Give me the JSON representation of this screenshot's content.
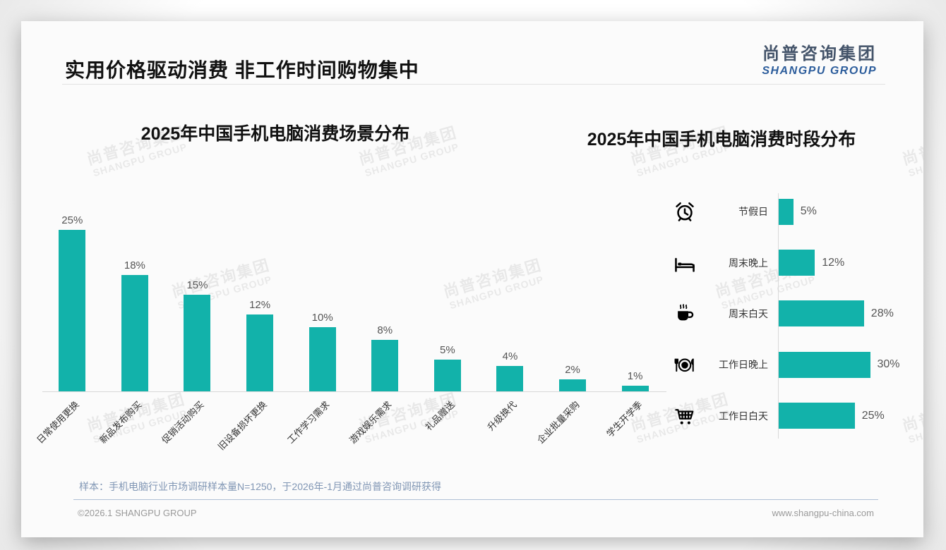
{
  "page": {
    "title": "实用价格驱动消费 非工作时间购物集中",
    "logo": {
      "cn": "尚普咨询集团",
      "en": "SHANGPU GROUP"
    },
    "watermark": {
      "cn": "尚普咨询集团",
      "en": "SHANGPU GROUP"
    },
    "sample_note": "样本：手机电脑行业市场调研样本量N=1250，于2026年-1月通过尚普咨询调研获得",
    "footer_left": "©2026.1 SHANGPU GROUP",
    "footer_right": "www.shangpu-china.com"
  },
  "colors": {
    "accent": "#12B2AA",
    "logo_cn": "#44546A",
    "logo_en": "#2B5C9B",
    "note": "#8096B4",
    "axis": "#D9D9D9"
  },
  "chart_data": [
    {
      "type": "bar",
      "orientation": "vertical",
      "title": "2025年中国手机电脑消费场景分布",
      "categories": [
        "日常使用更换",
        "新品发布购买",
        "促销活动购买",
        "旧设备损坏更换",
        "工作学习需求",
        "游戏娱乐需求",
        "礼品赠送",
        "升级换代",
        "企业批量采购",
        "学生开学季"
      ],
      "values": [
        25,
        18,
        15,
        12,
        10,
        8,
        5,
        4,
        2,
        1
      ],
      "unit": "%",
      "bar_color": "#12B2AA",
      "ylim": [
        0,
        27
      ],
      "grid": false,
      "legend": "none"
    },
    {
      "type": "bar",
      "orientation": "horizontal",
      "title": "2025年中国手机电脑消费时段分布",
      "categories": [
        "节假日",
        "周末晚上",
        "周末白天",
        "工作日晚上",
        "工作日白天"
      ],
      "values": [
        5,
        12,
        28,
        30,
        25
      ],
      "unit": "%",
      "icons": [
        "alarm-clock-icon",
        "bed-icon",
        "coffee-icon",
        "dining-icon",
        "cart-icon"
      ],
      "bar_color": "#12B2AA",
      "xlim": [
        0,
        32
      ],
      "grid": false,
      "legend": "none"
    }
  ]
}
